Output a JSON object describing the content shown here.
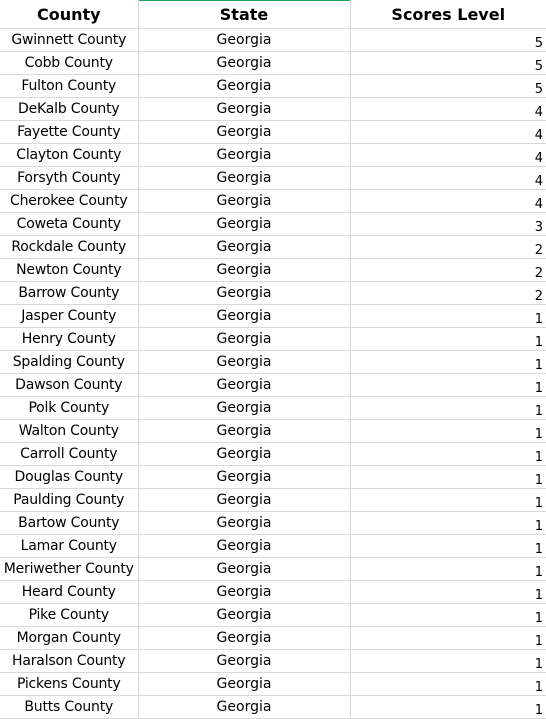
{
  "headers": {
    "county": "County",
    "state": "State",
    "score": "Scores Level"
  },
  "rows": [
    {
      "county": "Gwinnett County",
      "state": "Georgia",
      "score": "5"
    },
    {
      "county": "Cobb County",
      "state": "Georgia",
      "score": "5"
    },
    {
      "county": "Fulton County",
      "state": "Georgia",
      "score": "5"
    },
    {
      "county": "DeKalb County",
      "state": "Georgia",
      "score": "4"
    },
    {
      "county": "Fayette County",
      "state": "Georgia",
      "score": "4"
    },
    {
      "county": "Clayton County",
      "state": "Georgia",
      "score": "4"
    },
    {
      "county": "Forsyth County",
      "state": "Georgia",
      "score": "4"
    },
    {
      "county": "Cherokee County",
      "state": "Georgia",
      "score": "4"
    },
    {
      "county": "Coweta County",
      "state": "Georgia",
      "score": "3"
    },
    {
      "county": "Rockdale County",
      "state": "Georgia",
      "score": "2"
    },
    {
      "county": "Newton County",
      "state": "Georgia",
      "score": "2"
    },
    {
      "county": "Barrow County",
      "state": "Georgia",
      "score": "2"
    },
    {
      "county": "Jasper County",
      "state": "Georgia",
      "score": "1"
    },
    {
      "county": "Henry County",
      "state": "Georgia",
      "score": "1"
    },
    {
      "county": "Spalding County",
      "state": "Georgia",
      "score": "1"
    },
    {
      "county": "Dawson County",
      "state": "Georgia",
      "score": "1"
    },
    {
      "county": "Polk County",
      "state": "Georgia",
      "score": "1"
    },
    {
      "county": "Walton County",
      "state": "Georgia",
      "score": "1"
    },
    {
      "county": "Carroll County",
      "state": "Georgia",
      "score": "1"
    },
    {
      "county": "Douglas County",
      "state": "Georgia",
      "score": "1"
    },
    {
      "county": "Paulding County",
      "state": "Georgia",
      "score": "1"
    },
    {
      "county": "Bartow County",
      "state": "Georgia",
      "score": "1"
    },
    {
      "county": "Lamar County",
      "state": "Georgia",
      "score": "1"
    },
    {
      "county": "Meriwether County",
      "state": "Georgia",
      "score": "1"
    },
    {
      "county": "Heard County",
      "state": "Georgia",
      "score": "1"
    },
    {
      "county": "Pike County",
      "state": "Georgia",
      "score": "1"
    },
    {
      "county": "Morgan County",
      "state": "Georgia",
      "score": "1"
    },
    {
      "county": "Haralson County",
      "state": "Georgia",
      "score": "1"
    },
    {
      "county": "Pickens County",
      "state": "Georgia",
      "score": "1"
    },
    {
      "county": "Butts County",
      "state": "Georgia",
      "score": "1"
    }
  ],
  "colors": {
    "gridline": "#d9d9d9",
    "selected-column-accent": "#21a366",
    "background": "#ffffff",
    "text": "#000000"
  }
}
